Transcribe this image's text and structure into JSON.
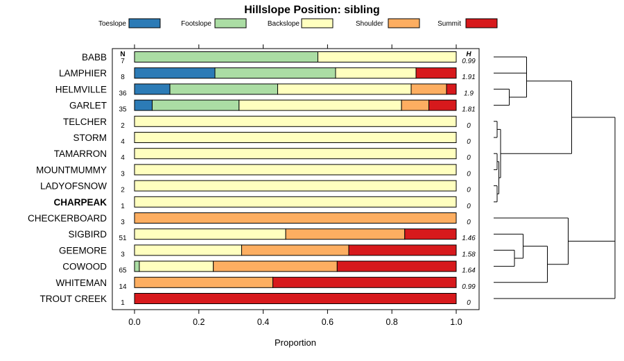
{
  "chart_data": {
    "type": "bar",
    "stacked": true,
    "orientation": "horizontal",
    "title": "Hillslope Position: sibling",
    "xlabel": "Proportion",
    "xlim": [
      0,
      1
    ],
    "xticks": [
      "0.0",
      "0.2",
      "0.4",
      "0.6",
      "0.8",
      "1.0"
    ],
    "n_header": "N",
    "h_header": "H",
    "legend": [
      {
        "name": "Toeslope",
        "color": "#2C7BB6"
      },
      {
        "name": "Footslope",
        "color": "#ABDDA4"
      },
      {
        "name": "Backslope",
        "color": "#FFFFBF"
      },
      {
        "name": "Shoulder",
        "color": "#FDAE61"
      },
      {
        "name": "Summit",
        "color": "#D7191C"
      }
    ],
    "categories": [
      "BABB",
      "LAMPHIER",
      "HELMVILLE",
      "GARLET",
      "TELCHER",
      "STORM",
      "TAMARRON",
      "MOUNTMUMMY",
      "LADYOFSNOW",
      "CHARPEAK",
      "CHECKERBOARD",
      "SIGBIRD",
      "GEEMORE",
      "COWOOD",
      "WHITEMAN",
      "TROUT CREEK"
    ],
    "bold_category": "CHARPEAK",
    "n": [
      "7",
      "8",
      "36",
      "35",
      "2",
      "4",
      "4",
      "3",
      "2",
      "1",
      "3",
      "51",
      "3",
      "65",
      "14",
      "1"
    ],
    "h": [
      "0.99",
      "1.91",
      "1.9",
      "1.81",
      "0",
      "0",
      "0",
      "0",
      "0",
      "0",
      "0",
      "1.46",
      "1.58",
      "1.64",
      "0.99",
      "0"
    ],
    "series": [
      {
        "name": "Toeslope",
        "values": [
          0,
          0.25,
          0.11,
          0.055,
          0,
          0,
          0,
          0,
          0,
          0,
          0,
          0,
          0,
          0,
          0,
          0
        ]
      },
      {
        "name": "Footslope",
        "values": [
          0.57,
          0.375,
          0.335,
          0.27,
          0,
          0,
          0,
          0,
          0,
          0,
          0,
          0,
          0,
          0.015,
          0,
          0
        ]
      },
      {
        "name": "Backslope",
        "values": [
          0.43,
          0.25,
          0.415,
          0.505,
          1,
          1,
          1,
          1,
          1,
          1,
          0,
          0.47,
          0.333,
          0.23,
          0,
          0
        ]
      },
      {
        "name": "Shoulder",
        "values": [
          0,
          0,
          0.11,
          0.085,
          0,
          0,
          0,
          0,
          0,
          0,
          1,
          0.37,
          0.333,
          0.385,
          0.43,
          0
        ]
      },
      {
        "name": "Summit",
        "values": [
          0,
          0.125,
          0.03,
          0.085,
          0,
          0,
          0,
          0,
          0,
          0,
          0,
          0.16,
          0.334,
          0.37,
          0.57,
          1
        ]
      }
    ],
    "dendrogram": {
      "position": "right",
      "leaf_order": [
        "BABB",
        "LAMPHIER",
        "HELMVILLE",
        "GARLET",
        "TELCHER",
        "STORM",
        "TAMARRON",
        "MOUNTMUMMY",
        "LADYOFSNOW",
        "CHARPEAK",
        "CHECKERBOARD",
        "SIGBIRD",
        "GEEMORE",
        "COWOOD",
        "WHITEMAN",
        "TROUT CREEK"
      ],
      "merges": [
        {
          "left": "LADYOFSNOW",
          "right": "CHARPEAK",
          "height": 0.01
        },
        {
          "left": "TAMARRON",
          "right": "MOUNTMUMMY",
          "height": 0.01
        },
        {
          "left": "TELCHER",
          "right": "STORM",
          "height": 0.01
        },
        {
          "left": "m2",
          "right": "m1",
          "height": 0.015
        },
        {
          "left": "m3",
          "right": "m4",
          "height": 0.02
        },
        {
          "left": "HELMVILLE",
          "right": "GARLET",
          "height": 0.045
        },
        {
          "left": "BABB",
          "right": "LAMPHIER",
          "height": 0.095
        },
        {
          "left": "m7",
          "right": "m6",
          "height": 0.095
        },
        {
          "left": "m8",
          "right": "m5",
          "height": 0.225
        },
        {
          "left": "GEEMORE",
          "right": "COWOOD",
          "height": 0.06
        },
        {
          "left": "SIGBIRD",
          "right": "m10",
          "height": 0.085
        },
        {
          "left": "m11",
          "right": "WHITEMAN",
          "height": 0.155
        },
        {
          "left": "CHECKERBOARD",
          "right": "m12",
          "height": 0.215
        },
        {
          "left": "m13",
          "right": "TROUT CREEK",
          "height": 0.35
        },
        {
          "left": "m9",
          "right": "m14",
          "height": 0.35
        }
      ]
    }
  }
}
